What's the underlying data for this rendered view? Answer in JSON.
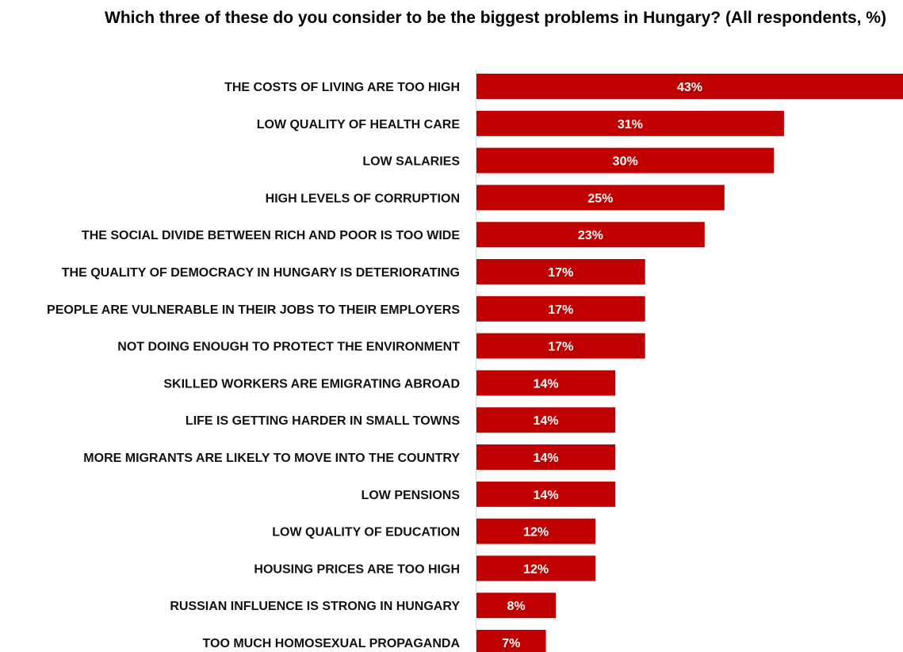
{
  "chart_data": {
    "type": "bar",
    "orientation": "horizontal",
    "title": "Which three of these do you consider to be the biggest problems in Hungary? (All respondents, %)",
    "xlabel": "",
    "ylabel": "",
    "grid": false,
    "legend": "none",
    "bar_color": "#c00000",
    "value_suffix": "%",
    "xlim": [
      0,
      43
    ],
    "categories": [
      "THE COSTS OF LIVING ARE TOO HIGH",
      "LOW QUALITY OF HEALTH CARE",
      "LOW SALARIES",
      "HIGH LEVELS OF CORRUPTION",
      "THE SOCIAL DIVIDE BETWEEN RICH AND POOR IS TOO WIDE",
      "THE QUALITY OF DEMOCRACY IN HUNGARY IS DETERIORATING",
      "PEOPLE ARE VULNERABLE IN THEIR JOBS TO THEIR EMPLOYERS",
      "NOT DOING ENOUGH TO PROTECT THE ENVIRONMENT",
      "SKILLED WORKERS ARE EMIGRATING ABROAD",
      "LIFE IS GETTING HARDER IN SMALL TOWNS",
      "MORE MIGRANTS ARE LIKELY TO MOVE INTO THE COUNTRY",
      "LOW PENSIONS",
      "LOW QUALITY OF EDUCATION",
      "HOUSING PRICES ARE TOO HIGH",
      "RUSSIAN INFLUENCE IS STRONG IN HUNGARY",
      "TOO MUCH HOMOSEXUAL PROPAGANDA"
    ],
    "values": [
      43,
      31,
      30,
      25,
      23,
      17,
      17,
      17,
      14,
      14,
      14,
      14,
      12,
      12,
      8,
      7
    ]
  }
}
